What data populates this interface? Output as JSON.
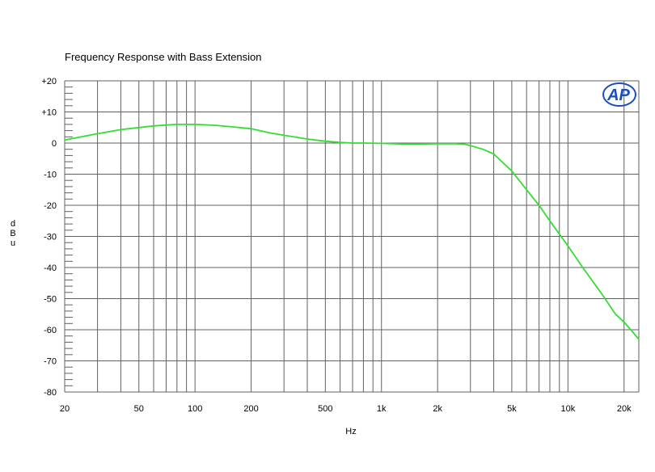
{
  "chart_data": {
    "type": "line",
    "title": "Frequency Response with Bass Extension",
    "xlabel": "Hz",
    "ylabel": "dBu",
    "x_scale": "log",
    "xlim": [
      20,
      24000
    ],
    "ylim": [
      -80,
      20
    ],
    "grid": true,
    "x_ticks": [
      20,
      50,
      100,
      200,
      500,
      1000,
      2000,
      5000,
      10000,
      20000
    ],
    "x_tick_labels": [
      "20",
      "50",
      "100",
      "200",
      "500",
      "1k",
      "2k",
      "5k",
      "10k",
      "20k"
    ],
    "y_ticks": [
      20,
      10,
      0,
      -10,
      -20,
      -30,
      -40,
      -50,
      -60,
      -70,
      -80
    ],
    "y_tick_labels": [
      "+20",
      "+10",
      "0",
      "-10",
      "-20",
      "-30",
      "-40",
      "-50",
      "-60",
      "-70",
      "-80"
    ],
    "series": [
      {
        "color": "#33dd33",
        "x": [
          20,
          30,
          40,
          50,
          60,
          70,
          80,
          90,
          100,
          130,
          160,
          200,
          250,
          300,
          400,
          500,
          600,
          700,
          800,
          1000,
          1300,
          1600,
          2000,
          2500,
          2800,
          3000,
          3500,
          4000,
          5000,
          6000,
          7000,
          8000,
          10000,
          12000,
          15000,
          18000,
          20000,
          24000
        ],
        "y": [
          1,
          3,
          4.3,
          5,
          5.5,
          5.8,
          6,
          6,
          6,
          5.7,
          5.2,
          4.6,
          3.3,
          2.5,
          1.3,
          0.6,
          0.2,
          0,
          0,
          -0.1,
          -0.3,
          -0.3,
          -0.2,
          -0.2,
          -0.4,
          -0.8,
          -2,
          -3.5,
          -9,
          -15,
          -20,
          -25,
          -33,
          -40,
          -48,
          -55,
          -57.5,
          -63
        ]
      }
    ]
  },
  "logo": {
    "text": "AP",
    "color": "#1a4fbf"
  }
}
